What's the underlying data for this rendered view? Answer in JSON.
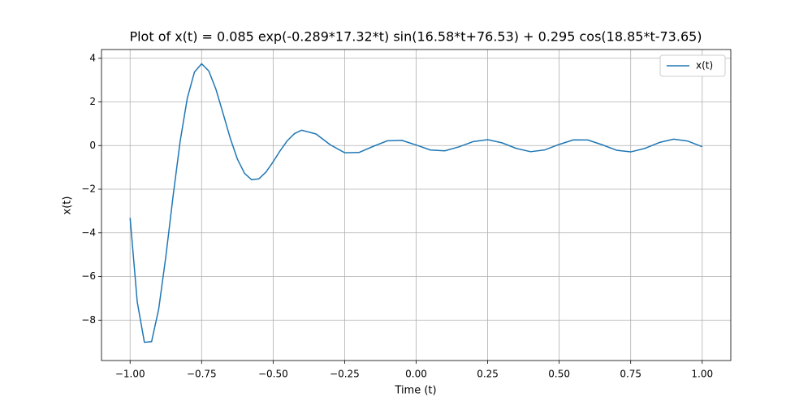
{
  "chart_data": {
    "type": "line",
    "title": "Plot of x(t) = 0.085 exp(-0.289*17.32*t) sin(16.58*t+76.53) + 0.295 cos(18.85*t-73.65)",
    "xlabel": "Time (t)",
    "ylabel": "x(t)",
    "x": [
      -1.0,
      -0.975,
      -0.95,
      -0.925,
      -0.9,
      -0.875,
      -0.85,
      -0.825,
      -0.8,
      -0.775,
      -0.75,
      -0.725,
      -0.7,
      -0.675,
      -0.65,
      -0.625,
      -0.6,
      -0.575,
      -0.55,
      -0.525,
      -0.5,
      -0.475,
      -0.45,
      -0.425,
      -0.4,
      -0.35,
      -0.3,
      -0.25,
      -0.2,
      -0.15,
      -0.1,
      -0.05,
      0,
      0.05,
      0.1,
      0.15,
      0.2,
      0.25,
      0.3,
      0.35,
      0.4,
      0.45,
      0.5,
      0.55,
      0.6,
      0.65,
      0.7,
      0.75,
      0.8,
      0.85,
      0.9,
      0.95,
      1.0
    ],
    "series": [
      {
        "name": "x(t)",
        "color": "#1f77b4",
        "values": [
          -3.312,
          -7.167,
          -9.015,
          -8.987,
          -7.49,
          -5.081,
          -2.342,
          0.201,
          2.173,
          3.369,
          3.749,
          3.419,
          2.581,
          1.473,
          0.341,
          -0.617,
          -1.272,
          -1.569,
          -1.527,
          -1.217,
          -0.745,
          -0.229,
          0.229,
          0.552,
          0.704,
          0.53,
          0.033,
          -0.328,
          -0.318,
          -0.037,
          0.221,
          0.237,
          0.025,
          -0.205,
          -0.242,
          -0.058,
          0.183,
          0.269,
          0.126,
          -0.13,
          -0.281,
          -0.198,
          0.052,
          0.261,
          0.256,
          0.038,
          -0.213,
          -0.29,
          -0.129,
          0.139,
          0.292,
          0.204,
          -0.052
        ]
      }
    ],
    "xlim": [
      -1.1,
      1.1
    ],
    "xticks": [
      {
        "value": -1,
        "label": "−1.00"
      },
      {
        "value": -0.75,
        "label": "−0.75"
      },
      {
        "value": -0.5,
        "label": "−0.50"
      },
      {
        "value": -0.25,
        "label": "−0.25"
      },
      {
        "value": 0,
        "label": "0.00"
      },
      {
        "value": 0.25,
        "label": "0.25"
      },
      {
        "value": 0.5,
        "label": "0.50"
      },
      {
        "value": 0.75,
        "label": "0.75"
      },
      {
        "value": 1,
        "label": "1.00"
      }
    ],
    "ylim": [
      -9.85,
      4.4
    ],
    "yticks": [
      {
        "value": -8,
        "label": "−8"
      },
      {
        "value": -6,
        "label": "−6"
      },
      {
        "value": -4,
        "label": "−4"
      },
      {
        "value": -2,
        "label": "−2"
      },
      0,
      2,
      4
    ],
    "grid": true,
    "legend": "upper right"
  }
}
